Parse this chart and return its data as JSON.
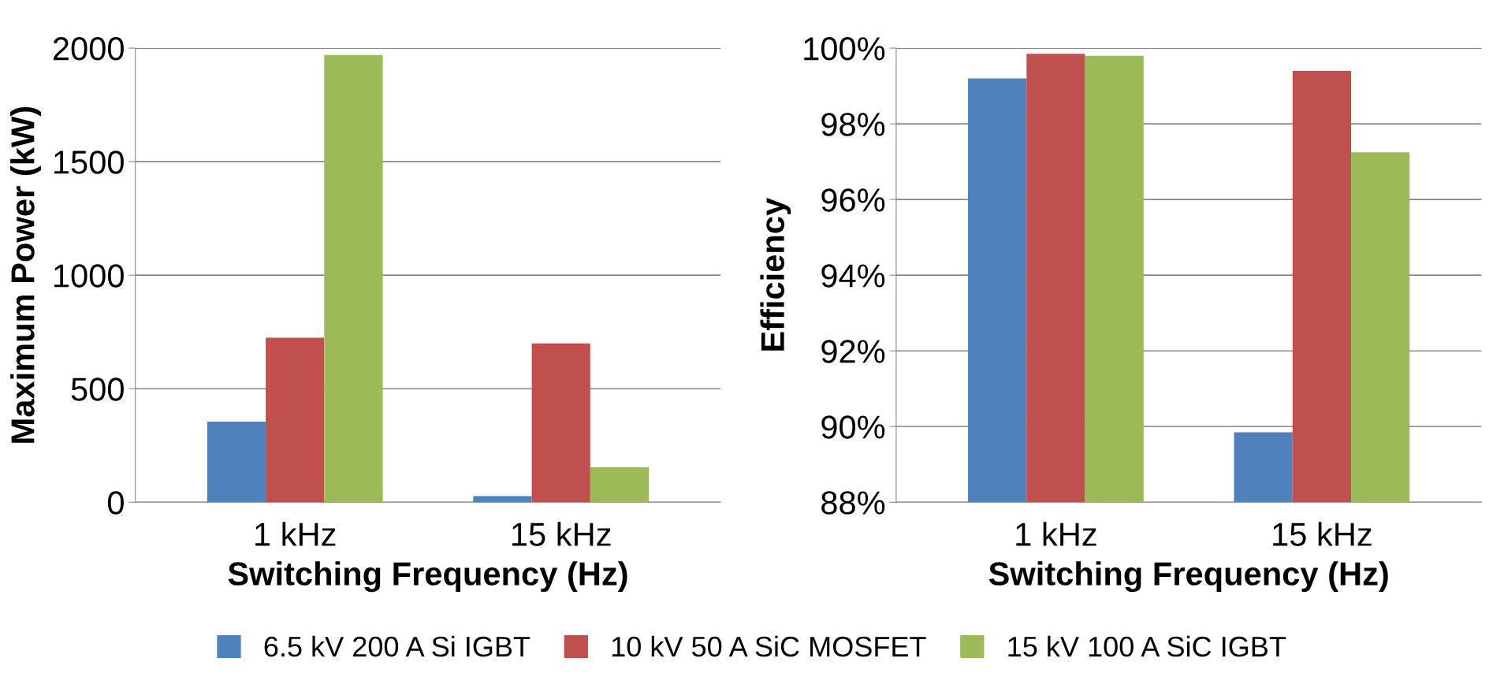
{
  "chart_data": [
    {
      "type": "bar",
      "xlabel": "Switching Frequency (Hz)",
      "ylabel": "Maximum Power (kW)",
      "categories": [
        "1 kHz",
        "15 kHz"
      ],
      "series": [
        {
          "name": "6.5 kV 200 A Si IGBT",
          "color": "#4f81bd",
          "values": [
            355,
            27
          ]
        },
        {
          "name": "10 kV 50 A SiC MOSFET",
          "color": "#c0504d",
          "values": [
            725,
            700
          ]
        },
        {
          "name": "15 kV 100 A SiC IGBT",
          "color": "#9bbb59",
          "values": [
            1970,
            155
          ]
        }
      ],
      "ylim": [
        0,
        2000
      ],
      "yticks": [
        0,
        500,
        1000,
        1500,
        2000
      ],
      "grid": "y",
      "legend": "bottom"
    },
    {
      "type": "bar",
      "xlabel": "Switching Frequency (Hz)",
      "ylabel": "Efficiency",
      "categories": [
        "1 kHz",
        "15 kHz"
      ],
      "series": [
        {
          "name": "6.5 kV 200 A Si IGBT",
          "color": "#4f81bd",
          "values": [
            99.2,
            89.85
          ]
        },
        {
          "name": "10 kV 50 A SiC MOSFET",
          "color": "#c0504d",
          "values": [
            99.85,
            99.4
          ]
        },
        {
          "name": "15 kV 100 A SiC IGBT",
          "color": "#9bbb59",
          "values": [
            99.8,
            97.25
          ]
        }
      ],
      "ylim": [
        88,
        100
      ],
      "yticks": [
        {
          "value": 88,
          "label": "88%"
        },
        {
          "value": 90,
          "label": "90%"
        },
        {
          "value": 92,
          "label": "92%"
        },
        {
          "value": 94,
          "label": "94%"
        },
        {
          "value": 96,
          "label": "96%"
        },
        {
          "value": 98,
          "label": "98%"
        },
        {
          "value": 100,
          "label": "100%"
        }
      ],
      "grid": "y",
      "legend": "bottom"
    }
  ]
}
